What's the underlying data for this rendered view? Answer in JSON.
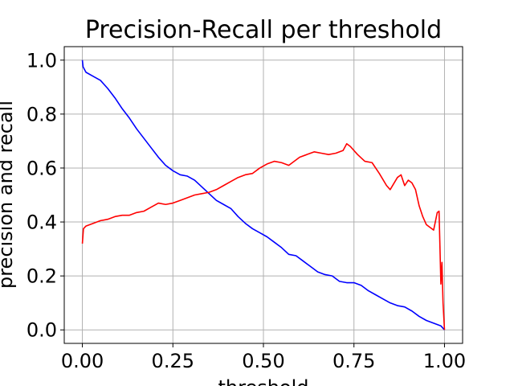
{
  "chart_data": {
    "type": "line",
    "title": "Precision-Recall per threshold",
    "xlabel": "threshold",
    "ylabel": "precision and recall",
    "xlim": [
      -0.05,
      1.05
    ],
    "ylim": [
      -0.05,
      1.05
    ],
    "grid": true,
    "legend": "none",
    "x_ticks": [
      "0.00",
      "0.25",
      "0.50",
      "0.75",
      "1.00"
    ],
    "x_tick_values": [
      0,
      0.25,
      0.5,
      0.75,
      1.0
    ],
    "y_ticks": [
      "0.0",
      "0.2",
      "0.4",
      "0.6",
      "0.8",
      "1.0"
    ],
    "y_tick_values": [
      0,
      0.2,
      0.4,
      0.6,
      0.8,
      1.0
    ],
    "series": [
      {
        "color": "#0000ff",
        "x": [
          0.0,
          0.002,
          0.01,
          0.03,
          0.05,
          0.07,
          0.09,
          0.11,
          0.13,
          0.15,
          0.17,
          0.19,
          0.21,
          0.23,
          0.25,
          0.27,
          0.29,
          0.31,
          0.33,
          0.35,
          0.37,
          0.39,
          0.41,
          0.43,
          0.45,
          0.47,
          0.49,
          0.51,
          0.53,
          0.55,
          0.57,
          0.59,
          0.61,
          0.63,
          0.65,
          0.67,
          0.69,
          0.71,
          0.73,
          0.75,
          0.77,
          0.79,
          0.81,
          0.83,
          0.85,
          0.87,
          0.89,
          0.91,
          0.93,
          0.95,
          0.97,
          0.99,
          1.0
        ],
        "values": [
          1.0,
          0.975,
          0.955,
          0.94,
          0.925,
          0.895,
          0.86,
          0.82,
          0.785,
          0.745,
          0.71,
          0.675,
          0.64,
          0.61,
          0.59,
          0.575,
          0.57,
          0.555,
          0.53,
          0.505,
          0.48,
          0.465,
          0.45,
          0.42,
          0.395,
          0.375,
          0.36,
          0.345,
          0.325,
          0.305,
          0.28,
          0.275,
          0.255,
          0.235,
          0.215,
          0.205,
          0.2,
          0.18,
          0.175,
          0.175,
          0.165,
          0.145,
          0.13,
          0.115,
          0.1,
          0.09,
          0.085,
          0.07,
          0.05,
          0.035,
          0.025,
          0.015,
          0.0
        ]
      },
      {
        "color": "#ff0000",
        "x": [
          0.0,
          0.003,
          0.01,
          0.03,
          0.05,
          0.07,
          0.09,
          0.11,
          0.13,
          0.15,
          0.17,
          0.19,
          0.21,
          0.23,
          0.25,
          0.27,
          0.29,
          0.31,
          0.33,
          0.35,
          0.37,
          0.39,
          0.41,
          0.43,
          0.45,
          0.47,
          0.49,
          0.51,
          0.53,
          0.55,
          0.57,
          0.59,
          0.6,
          0.62,
          0.64,
          0.66,
          0.68,
          0.7,
          0.72,
          0.73,
          0.74,
          0.76,
          0.78,
          0.8,
          0.82,
          0.84,
          0.85,
          0.87,
          0.88,
          0.89,
          0.9,
          0.91,
          0.92,
          0.93,
          0.94,
          0.95,
          0.96,
          0.97,
          0.98,
          0.985,
          0.99,
          0.993,
          0.996,
          1.0
        ],
        "values": [
          0.32,
          0.375,
          0.385,
          0.395,
          0.405,
          0.41,
          0.42,
          0.425,
          0.425,
          0.435,
          0.44,
          0.455,
          0.47,
          0.465,
          0.47,
          0.48,
          0.49,
          0.5,
          0.505,
          0.51,
          0.52,
          0.535,
          0.55,
          0.565,
          0.575,
          0.58,
          0.6,
          0.615,
          0.625,
          0.62,
          0.61,
          0.63,
          0.64,
          0.65,
          0.66,
          0.655,
          0.65,
          0.655,
          0.665,
          0.69,
          0.68,
          0.65,
          0.625,
          0.62,
          0.58,
          0.535,
          0.52,
          0.565,
          0.575,
          0.535,
          0.555,
          0.545,
          0.52,
          0.46,
          0.42,
          0.39,
          0.38,
          0.37,
          0.435,
          0.44,
          0.17,
          0.25,
          0.1,
          0.0
        ]
      }
    ]
  }
}
